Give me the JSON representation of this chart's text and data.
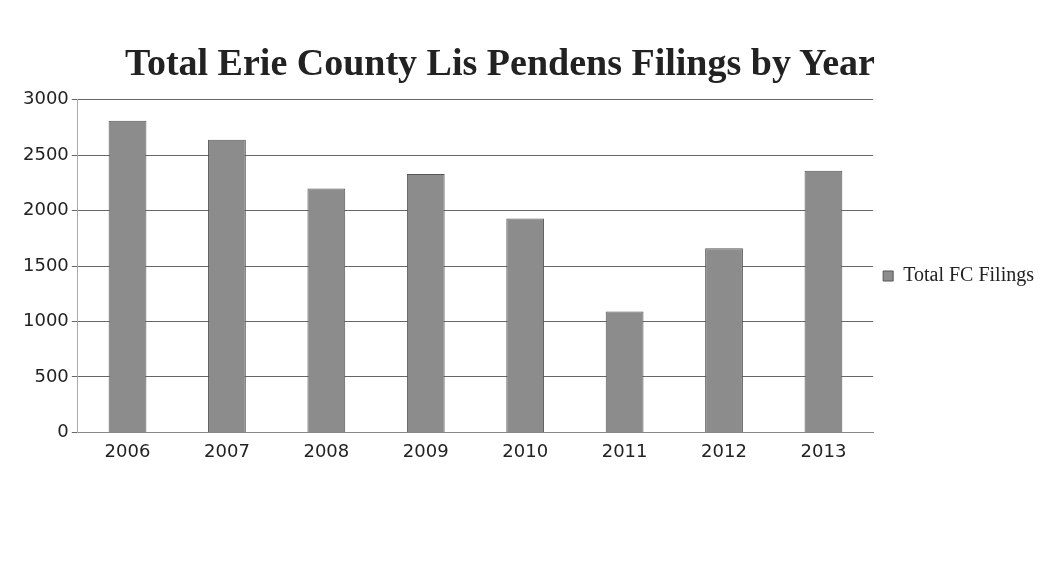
{
  "chart_data": {
    "type": "bar",
    "title": "Total Erie County Lis Pendens Filings by Year",
    "categories": [
      "2006",
      "2007",
      "2008",
      "2009",
      "2010",
      "2011",
      "2012",
      "2013"
    ],
    "series": [
      {
        "name": "Total FC Filings",
        "color": "#8c8c8c",
        "values": [
          2810,
          2640,
          2200,
          2330,
          1930,
          1090,
          1660,
          2360
        ]
      }
    ],
    "ylim": [
      0,
      3000
    ],
    "yticks": [
      0,
      500,
      1000,
      1500,
      2000,
      2500,
      3000
    ],
    "grid": "y",
    "legend": "right"
  }
}
